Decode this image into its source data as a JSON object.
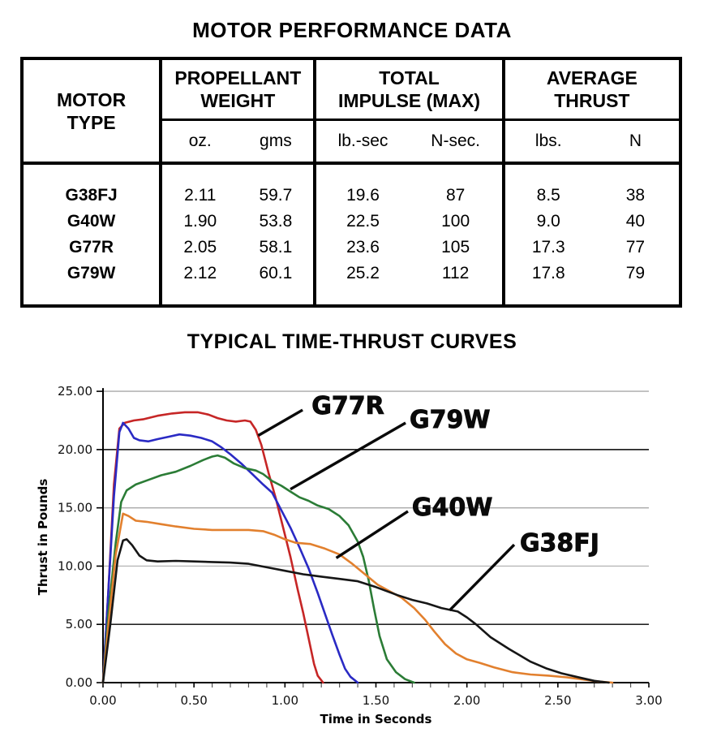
{
  "table": {
    "title": "MOTOR PERFORMANCE DATA",
    "headers": [
      [
        "MOTOR",
        "TYPE"
      ],
      [
        "PROPELLANT",
        "WEIGHT"
      ],
      [
        "TOTAL",
        "IMPULSE (MAX)"
      ],
      [
        "AVERAGE",
        "THRUST"
      ]
    ],
    "units": [
      "oz.",
      "gms",
      "lb.-sec",
      "N-sec.",
      "lbs.",
      "N"
    ],
    "rows": [
      [
        "G38FJ",
        "2.11",
        "59.7",
        "19.6",
        "87",
        "8.5",
        "38"
      ],
      [
        "G40W",
        "1.90",
        "53.8",
        "22.5",
        "100",
        "9.0",
        "40"
      ],
      [
        "G77R",
        "2.05",
        "58.1",
        "23.6",
        "105",
        "17.3",
        "77"
      ],
      [
        "G79W",
        "2.12",
        "60.1",
        "25.2",
        "112",
        "17.8",
        "79"
      ]
    ]
  },
  "chart_data": {
    "type": "line",
    "title": "TYPICAL TIME-THRUST CURVES",
    "xlabel": "Time in Seconds",
    "ylabel": "Thrust in Pounds",
    "xlim": [
      0,
      3
    ],
    "ylim": [
      0,
      25
    ],
    "grid": "horizontal",
    "legend": "inline-annotations",
    "x_ticks": {
      "major_step": 0.5,
      "minor_step": 0.1,
      "labels": [
        "0.00",
        "0.50",
        "1.00",
        "1.50",
        "2.00",
        "2.50",
        "3.00"
      ]
    },
    "y_ticks": [
      {
        "value": 25,
        "label": "25.00",
        "grid": "#a8a8a8"
      },
      {
        "value": 20,
        "label": "20.00",
        "grid": "#000000"
      },
      {
        "value": 15,
        "label": "15.00",
        "grid": "#a8a8a8"
      },
      {
        "value": 10,
        "label": "10.00",
        "grid": "#b8b8b8"
      },
      {
        "value": 5,
        "label": "5.00",
        "grid": "#000000"
      },
      {
        "value": 0,
        "label": "0.00",
        "grid": null
      }
    ],
    "series": [
      {
        "name": "G77R",
        "color": "#c62626",
        "points": [
          [
            0,
            0
          ],
          [
            0.03,
            8
          ],
          [
            0.06,
            17
          ],
          [
            0.09,
            21.8
          ],
          [
            0.12,
            22.3
          ],
          [
            0.17,
            22.5
          ],
          [
            0.22,
            22.6
          ],
          [
            0.3,
            22.9
          ],
          [
            0.38,
            23.1
          ],
          [
            0.45,
            23.2
          ],
          [
            0.52,
            23.2
          ],
          [
            0.58,
            23.0
          ],
          [
            0.63,
            22.7
          ],
          [
            0.68,
            22.5
          ],
          [
            0.73,
            22.4
          ],
          [
            0.78,
            22.5
          ],
          [
            0.81,
            22.4
          ],
          [
            0.84,
            21.7
          ],
          [
            0.87,
            20.4
          ],
          [
            0.91,
            18.0
          ],
          [
            0.95,
            15.8
          ],
          [
            0.99,
            13.3
          ],
          [
            1.03,
            10.8
          ],
          [
            1.07,
            8.0
          ],
          [
            1.1,
            6.0
          ],
          [
            1.13,
            3.8
          ],
          [
            1.16,
            1.6
          ],
          [
            1.18,
            0.6
          ],
          [
            1.21,
            0
          ]
        ]
      },
      {
        "name": "unlabeled-blue",
        "color": "#2a2ac4",
        "points": [
          [
            0,
            0
          ],
          [
            0.03,
            8
          ],
          [
            0.06,
            16
          ],
          [
            0.09,
            21.5
          ],
          [
            0.11,
            22.3
          ],
          [
            0.14,
            21.8
          ],
          [
            0.17,
            21.0
          ],
          [
            0.2,
            20.8
          ],
          [
            0.25,
            20.7
          ],
          [
            0.3,
            20.9
          ],
          [
            0.36,
            21.1
          ],
          [
            0.42,
            21.3
          ],
          [
            0.48,
            21.2
          ],
          [
            0.54,
            21.0
          ],
          [
            0.6,
            20.7
          ],
          [
            0.65,
            20.2
          ],
          [
            0.7,
            19.6
          ],
          [
            0.76,
            18.8
          ],
          [
            0.82,
            17.9
          ],
          [
            0.88,
            17.0
          ],
          [
            0.93,
            16.3
          ],
          [
            0.98,
            14.8
          ],
          [
            1.03,
            13.3
          ],
          [
            1.08,
            11.6
          ],
          [
            1.13,
            9.8
          ],
          [
            1.18,
            7.7
          ],
          [
            1.22,
            5.9
          ],
          [
            1.26,
            4.1
          ],
          [
            1.3,
            2.4
          ],
          [
            1.33,
            1.2
          ],
          [
            1.36,
            0.5
          ],
          [
            1.4,
            0
          ]
        ]
      },
      {
        "name": "G79W",
        "color": "#2b7c36",
        "points": [
          [
            0,
            0
          ],
          [
            0.03,
            6
          ],
          [
            0.07,
            12
          ],
          [
            0.1,
            15.5
          ],
          [
            0.13,
            16.5
          ],
          [
            0.18,
            17.0
          ],
          [
            0.25,
            17.4
          ],
          [
            0.32,
            17.8
          ],
          [
            0.4,
            18.1
          ],
          [
            0.48,
            18.6
          ],
          [
            0.55,
            19.1
          ],
          [
            0.6,
            19.4
          ],
          [
            0.63,
            19.5
          ],
          [
            0.67,
            19.3
          ],
          [
            0.72,
            18.8
          ],
          [
            0.78,
            18.4
          ],
          [
            0.84,
            18.2
          ],
          [
            0.88,
            17.9
          ],
          [
            0.93,
            17.3
          ],
          [
            0.98,
            16.9
          ],
          [
            1.03,
            16.4
          ],
          [
            1.08,
            15.9
          ],
          [
            1.13,
            15.6
          ],
          [
            1.18,
            15.2
          ],
          [
            1.24,
            14.9
          ],
          [
            1.3,
            14.3
          ],
          [
            1.35,
            13.5
          ],
          [
            1.4,
            12.1
          ],
          [
            1.43,
            10.8
          ],
          [
            1.46,
            8.8
          ],
          [
            1.49,
            6.3
          ],
          [
            1.52,
            4.0
          ],
          [
            1.56,
            2.0
          ],
          [
            1.61,
            0.9
          ],
          [
            1.66,
            0.3
          ],
          [
            1.71,
            0
          ]
        ]
      },
      {
        "name": "G40W",
        "color": "#e2802e",
        "points": [
          [
            0,
            0
          ],
          [
            0.03,
            5
          ],
          [
            0.07,
            11
          ],
          [
            0.11,
            14.5
          ],
          [
            0.14,
            14.3
          ],
          [
            0.18,
            13.9
          ],
          [
            0.24,
            13.8
          ],
          [
            0.32,
            13.6
          ],
          [
            0.4,
            13.4
          ],
          [
            0.5,
            13.2
          ],
          [
            0.6,
            13.1
          ],
          [
            0.7,
            13.1
          ],
          [
            0.8,
            13.1
          ],
          [
            0.88,
            13.0
          ],
          [
            0.94,
            12.7
          ],
          [
            1.0,
            12.3
          ],
          [
            1.06,
            12.0
          ],
          [
            1.14,
            11.9
          ],
          [
            1.22,
            11.5
          ],
          [
            1.3,
            11.0
          ],
          [
            1.37,
            10.2
          ],
          [
            1.44,
            9.3
          ],
          [
            1.51,
            8.4
          ],
          [
            1.58,
            7.8
          ],
          [
            1.64,
            7.3
          ],
          [
            1.71,
            6.4
          ],
          [
            1.77,
            5.4
          ],
          [
            1.82,
            4.4
          ],
          [
            1.88,
            3.3
          ],
          [
            1.94,
            2.5
          ],
          [
            2.0,
            2.0
          ],
          [
            2.07,
            1.7
          ],
          [
            2.15,
            1.3
          ],
          [
            2.25,
            0.9
          ],
          [
            2.35,
            0.7
          ],
          [
            2.45,
            0.6
          ],
          [
            2.55,
            0.45
          ],
          [
            2.65,
            0.25
          ],
          [
            2.72,
            0.1
          ],
          [
            2.8,
            0
          ]
        ]
      },
      {
        "name": "G38FJ",
        "color": "#161616",
        "points": [
          [
            0,
            0
          ],
          [
            0.04,
            5
          ],
          [
            0.08,
            10.5
          ],
          [
            0.11,
            12.2
          ],
          [
            0.13,
            12.3
          ],
          [
            0.16,
            11.8
          ],
          [
            0.2,
            10.9
          ],
          [
            0.24,
            10.5
          ],
          [
            0.3,
            10.4
          ],
          [
            0.4,
            10.45
          ],
          [
            0.5,
            10.4
          ],
          [
            0.6,
            10.35
          ],
          [
            0.7,
            10.3
          ],
          [
            0.8,
            10.2
          ],
          [
            0.9,
            9.9
          ],
          [
            1.0,
            9.6
          ],
          [
            1.1,
            9.3
          ],
          [
            1.2,
            9.1
          ],
          [
            1.3,
            8.9
          ],
          [
            1.4,
            8.7
          ],
          [
            1.5,
            8.2
          ],
          [
            1.62,
            7.5
          ],
          [
            1.7,
            7.1
          ],
          [
            1.78,
            6.8
          ],
          [
            1.86,
            6.4
          ],
          [
            1.95,
            6.1
          ],
          [
            2.0,
            5.6
          ],
          [
            2.05,
            5.0
          ],
          [
            2.13,
            3.9
          ],
          [
            2.23,
            2.9
          ],
          [
            2.35,
            1.8
          ],
          [
            2.44,
            1.2
          ],
          [
            2.52,
            0.8
          ],
          [
            2.63,
            0.4
          ],
          [
            2.7,
            0.15
          ],
          [
            2.78,
            0
          ]
        ]
      }
    ],
    "annotations": [
      {
        "text": "G77R",
        "label_t": 1.147,
        "label_v": 23.05,
        "line": [
          [
            1.097,
            23.4
          ],
          [
            0.853,
            21.2
          ]
        ]
      },
      {
        "text": "G79W",
        "label_t": 1.685,
        "label_v": 21.87,
        "line": [
          [
            1.663,
            22.29
          ],
          [
            1.03,
            16.6
          ]
        ]
      },
      {
        "text": "G40W",
        "label_t": 1.698,
        "label_v": 14.35,
        "line": [
          [
            1.676,
            14.7
          ],
          [
            1.282,
            10.7
          ]
        ]
      },
      {
        "text": "G38FJ",
        "label_t": 2.291,
        "label_v": 11.28,
        "line": [
          [
            2.26,
            11.84
          ],
          [
            1.905,
            6.2
          ]
        ]
      }
    ]
  }
}
